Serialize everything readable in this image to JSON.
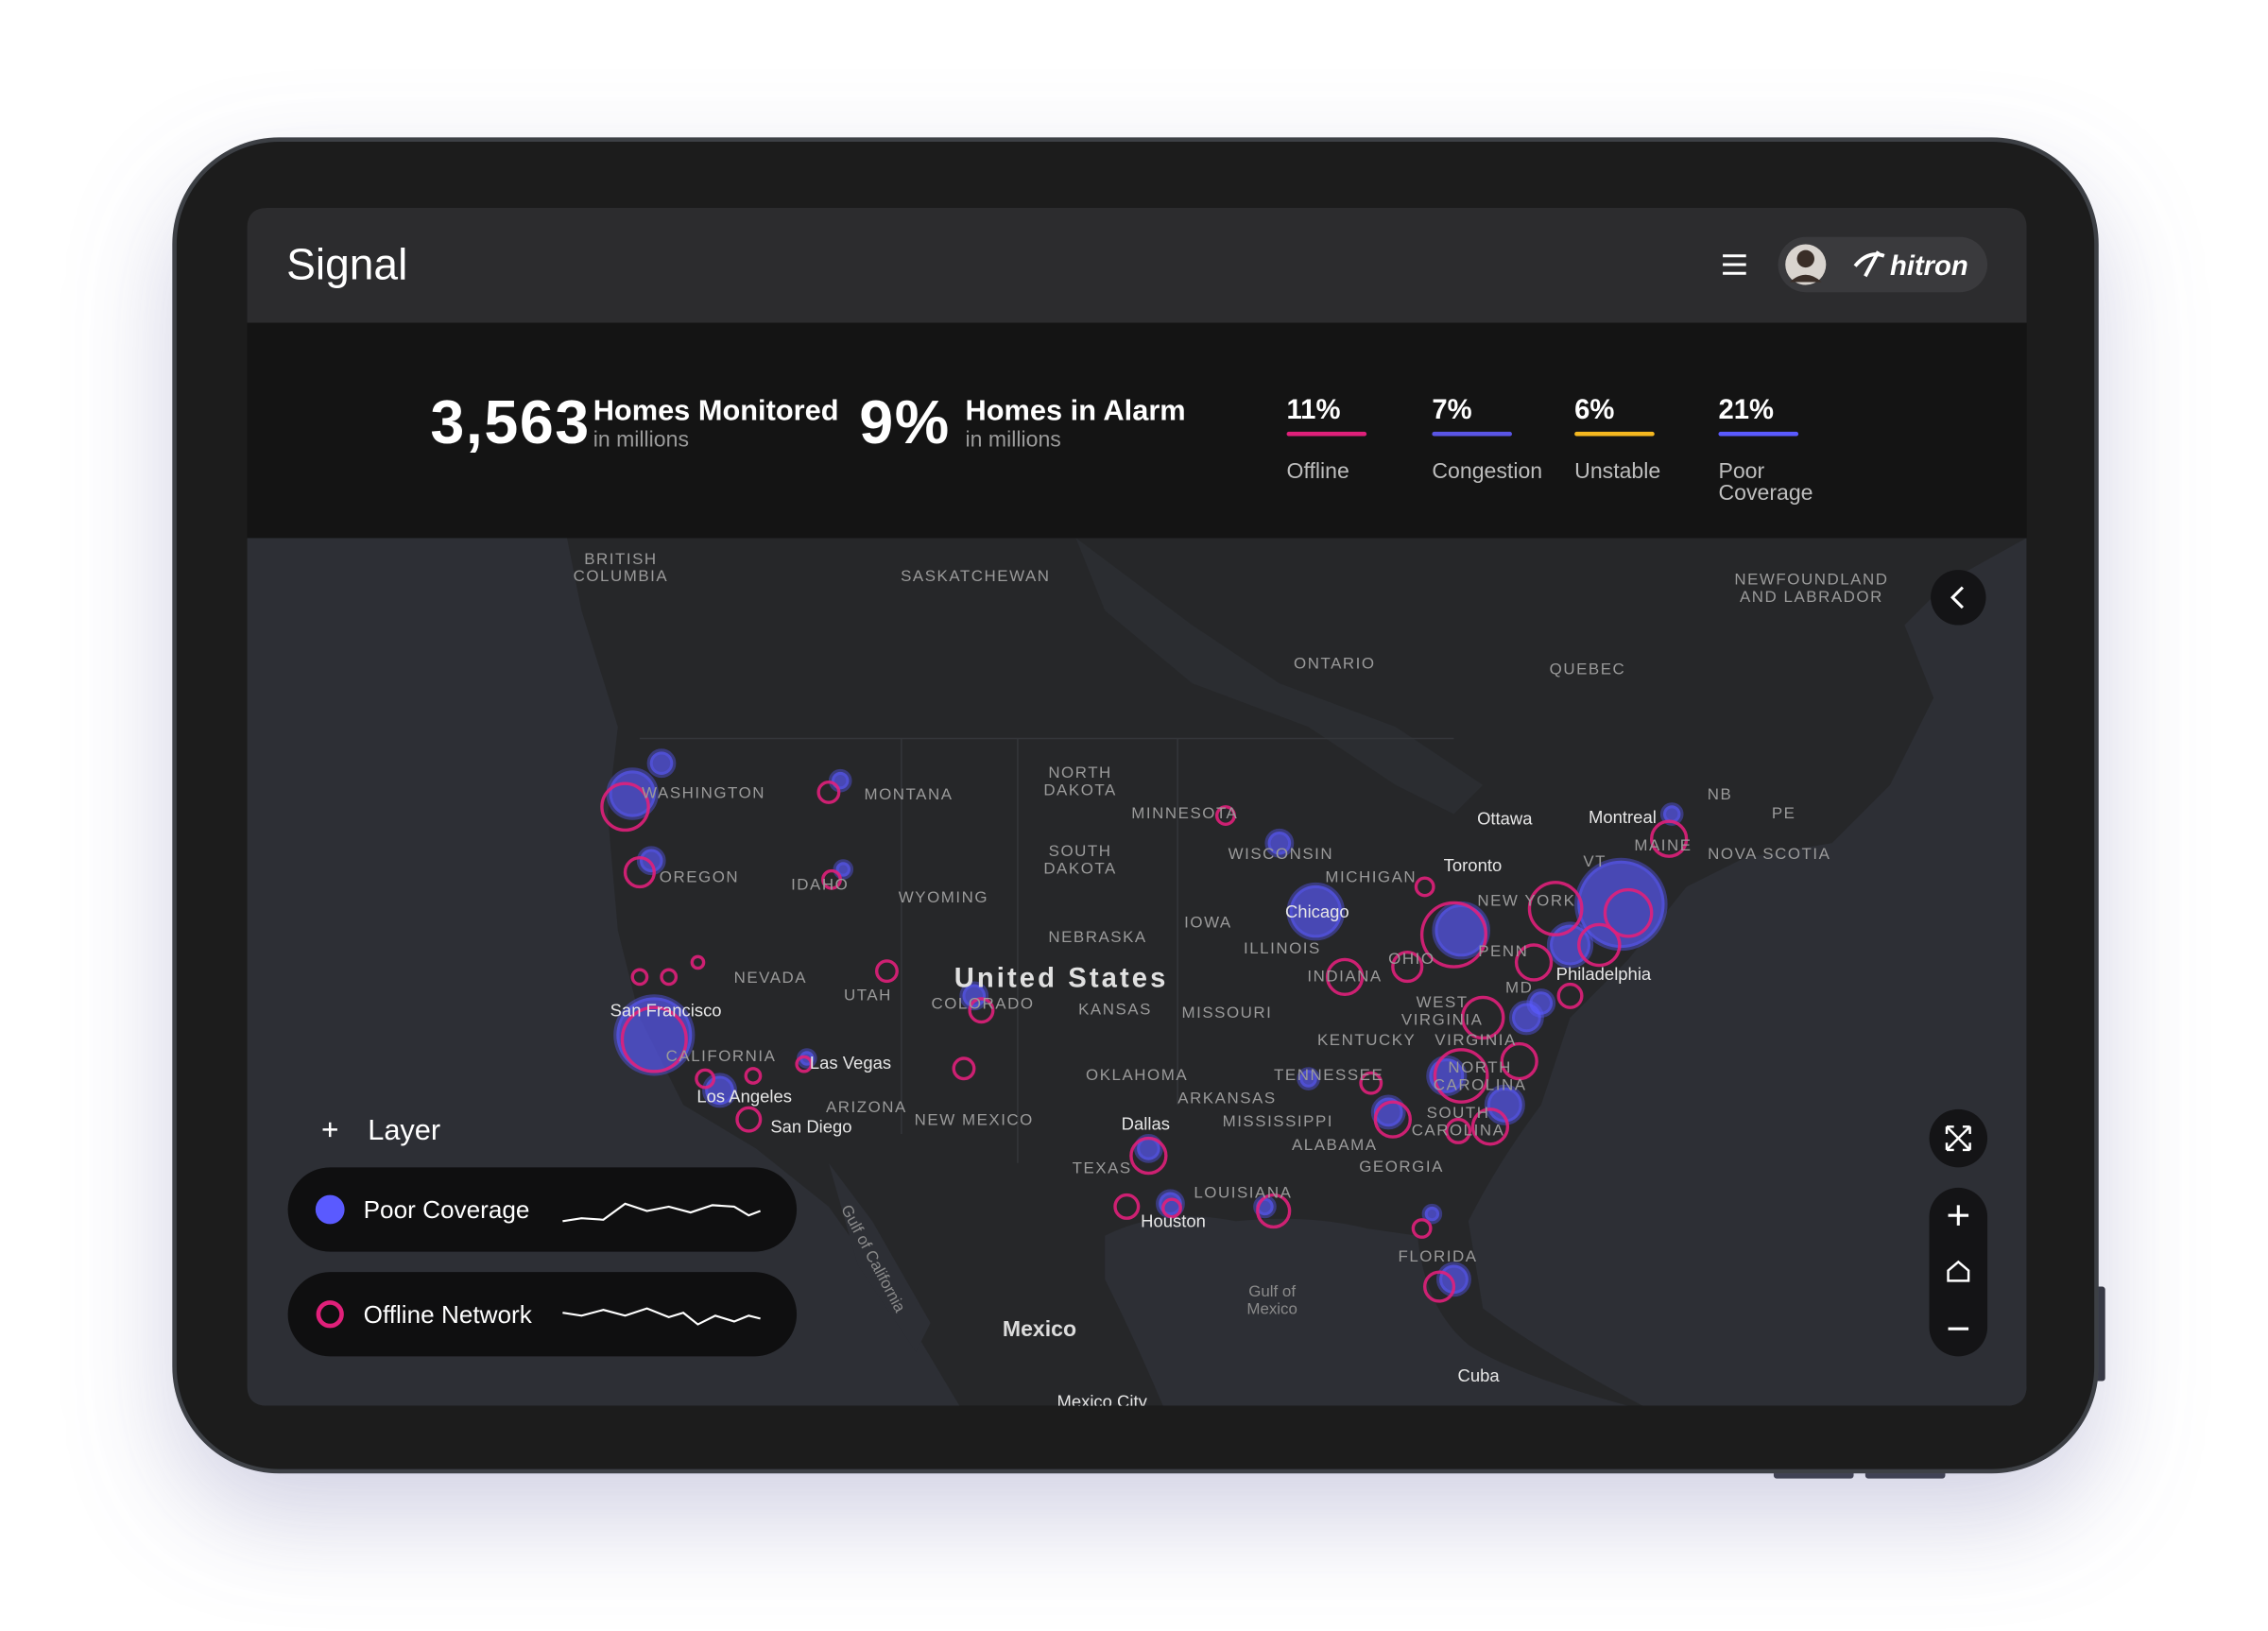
{
  "header": {
    "title": "Signal",
    "brand": "hitron"
  },
  "summary": [
    {
      "value": "3,563",
      "label": "Homes Monitored",
      "unit": "in millions"
    },
    {
      "value": "9%",
      "label": "Homes in Alarm",
      "unit": "in millions"
    }
  ],
  "metrics": [
    {
      "value": "11%",
      "label": "Offline",
      "color": "#e0207a"
    },
    {
      "value": "7%",
      "label": "Congestion",
      "color": "#5a55e6"
    },
    {
      "value": "6%",
      "label": "Unstable",
      "color": "#f5b820"
    },
    {
      "value": "21%",
      "label": "Poor Coverage",
      "color": "#5a5aff"
    }
  ],
  "map": {
    "labels": [
      "BRITISH",
      "COLUMBIA",
      "SASKATCHEWAN",
      "NEWFOUNDLAND",
      "AND LABRADOR",
      "ONTARIO",
      "QUEBEC",
      "WASHINGTON",
      "MONTANA",
      "NORTH",
      "DAKOTA",
      "MINNESOTA",
      "NB",
      "PE",
      "NOVA SCOTIA",
      "MAINE",
      "VT",
      "Ottawa",
      "Montreal",
      "SOUTH",
      "DAKOTA",
      "WISCONSIN",
      "MICHIGAN",
      "Toronto",
      "OREGON",
      "IDAHO",
      "WYOMING",
      "NEW YORK",
      "IOWA",
      "NEBRASKA",
      "Chicago",
      "ILLINOIS",
      "NEVADA",
      "UTAH",
      "United States",
      "COLORADO",
      "KANSAS",
      "MISSOURI",
      "INDIANA",
      "OHIO",
      "PENN",
      "MD",
      "Philadelphia",
      "WEST",
      "VIRGINIA",
      "San Francisco",
      "CALIFORNIA",
      "Las Vegas",
      "KENTUCKY",
      "VIRGINIA",
      "OKLAHOMA",
      "TENNESSEE",
      "NORTH",
      "CAROLINA",
      "ARKANSAS",
      "Los Angeles",
      "ARIZONA",
      "NEW MEXICO",
      "MISSISSIPPI",
      "SOUTH",
      "CAROLINA",
      "San Diego",
      "Dallas",
      "ALABAMA",
      "GEORGIA",
      "TEXAS",
      "LOUISIANA",
      "Houston",
      "FLORIDA",
      "Gulf of",
      "Mexico",
      "Gulf of California",
      "Mexico",
      "Cuba",
      "Mexico City"
    ]
  },
  "layers": {
    "title": "Layer",
    "items": [
      {
        "label": "Poor Coverage",
        "color": "#5a5aff",
        "style": "filled"
      },
      {
        "label": "Offline Network",
        "color": "#e0207a",
        "style": "ring"
      }
    ]
  }
}
